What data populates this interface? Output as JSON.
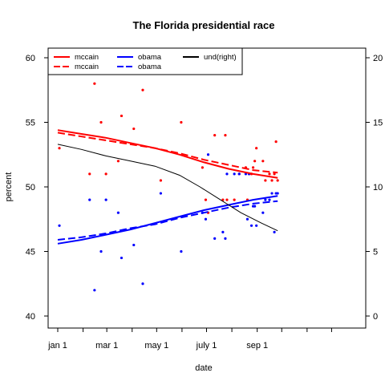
{
  "chart_data": {
    "type": "scatter",
    "title": "The Florida presidential race",
    "xlabel": "date",
    "ylabel": "percent",
    "ylim_left": [
      40,
      60
    ],
    "ylim_right": [
      0,
      20
    ],
    "xlim_days": [
      1,
      366
    ],
    "left_ticks": [
      40,
      45,
      50,
      55,
      60
    ],
    "right_ticks": [
      0,
      5,
      10,
      15,
      20
    ],
    "date_ticks": [
      {
        "day": 1,
        "label": "jan 1"
      },
      {
        "day": 61,
        "label": "mar 1"
      },
      {
        "day": 122,
        "label": "may 1"
      },
      {
        "day": 183,
        "label": "july 1"
      },
      {
        "day": 245,
        "label": "sep 1"
      }
    ],
    "minor_date_ticks": [
      32,
      92,
      153,
      214,
      275,
      306,
      336
    ],
    "legend": {
      "placement": "top-left",
      "entries": [
        {
          "label": "mccain",
          "color": "#ff0000",
          "style": "solid"
        },
        {
          "label": "mccain",
          "color": "#ff0000",
          "style": "dashed"
        },
        {
          "label": "obama",
          "color": "#0000ff",
          "style": "solid"
        },
        {
          "label": "obama",
          "color": "#0000ff",
          "style": "dashed"
        },
        {
          "label": "und(right)",
          "color": "#000000",
          "style": "solid"
        }
      ]
    },
    "series": [
      {
        "name": "mccain",
        "color": "#ff0000",
        "kind": "points",
        "points": [
          [
            3,
            53
          ],
          [
            40,
            51
          ],
          [
            46,
            58
          ],
          [
            54,
            55
          ],
          [
            60,
            51
          ],
          [
            75,
            52
          ],
          [
            79,
            55.5
          ],
          [
            94,
            54.5
          ],
          [
            105,
            57.5
          ],
          [
            127,
            50.5
          ],
          [
            152,
            55
          ],
          [
            178,
            51.5
          ],
          [
            182,
            49
          ],
          [
            185,
            48
          ],
          [
            193,
            54
          ],
          [
            203,
            49
          ],
          [
            206,
            54
          ],
          [
            208,
            49
          ],
          [
            217,
            49
          ],
          [
            223,
            51
          ],
          [
            231,
            51.5
          ],
          [
            233,
            49
          ],
          [
            235,
            51
          ],
          [
            238,
            51
          ],
          [
            240,
            51.5
          ],
          [
            242,
            52
          ],
          [
            244,
            53
          ],
          [
            252,
            52
          ],
          [
            255,
            50.5
          ],
          [
            260,
            51
          ],
          [
            263,
            50.5
          ],
          [
            266,
            51
          ],
          [
            268,
            53.5
          ],
          [
            270,
            50.5
          ]
        ]
      },
      {
        "name": "obama",
        "color": "#0000ff",
        "kind": "points",
        "points": [
          [
            3,
            47
          ],
          [
            40,
            49
          ],
          [
            46,
            42
          ],
          [
            54,
            45
          ],
          [
            60,
            49
          ],
          [
            75,
            48
          ],
          [
            79,
            44.5
          ],
          [
            94,
            45.5
          ],
          [
            105,
            42.5
          ],
          [
            127,
            49.5
          ],
          [
            152,
            45
          ],
          [
            178,
            48
          ],
          [
            182,
            47.5
          ],
          [
            185,
            52.5
          ],
          [
            193,
            46
          ],
          [
            203,
            46.5
          ],
          [
            206,
            46
          ],
          [
            208,
            51
          ],
          [
            217,
            51
          ],
          [
            223,
            51
          ],
          [
            231,
            51
          ],
          [
            233,
            47.5
          ],
          [
            235,
            51
          ],
          [
            238,
            47
          ],
          [
            240,
            48.5
          ],
          [
            242,
            48.5
          ],
          [
            244,
            47
          ],
          [
            252,
            48
          ],
          [
            255,
            49
          ],
          [
            260,
            49
          ],
          [
            263,
            49.5
          ],
          [
            266,
            46.5
          ],
          [
            268,
            49.5
          ],
          [
            270,
            49.5
          ]
        ]
      },
      {
        "name": "mccain",
        "color": "#ff0000",
        "kind": "line",
        "style": "solid",
        "points": [
          [
            1,
            54.4
          ],
          [
            30,
            54.1
          ],
          [
            60,
            53.8
          ],
          [
            90,
            53.4
          ],
          [
            120,
            53.0
          ],
          [
            150,
            52.5
          ],
          [
            180,
            51.9
          ],
          [
            210,
            51.4
          ],
          [
            240,
            51.0
          ],
          [
            270,
            50.7
          ]
        ]
      },
      {
        "name": "mccain",
        "color": "#ff0000",
        "kind": "line",
        "style": "dashed",
        "points": [
          [
            1,
            54.2
          ],
          [
            30,
            53.9
          ],
          [
            60,
            53.6
          ],
          [
            90,
            53.3
          ],
          [
            120,
            53.0
          ],
          [
            150,
            52.6
          ],
          [
            180,
            52.1
          ],
          [
            210,
            51.7
          ],
          [
            240,
            51.3
          ],
          [
            270,
            51.1
          ]
        ]
      },
      {
        "name": "obama",
        "color": "#0000ff",
        "kind": "line",
        "style": "solid",
        "points": [
          [
            1,
            45.6
          ],
          [
            30,
            45.9
          ],
          [
            60,
            46.3
          ],
          [
            90,
            46.7
          ],
          [
            120,
            47.2
          ],
          [
            150,
            47.7
          ],
          [
            180,
            48.2
          ],
          [
            210,
            48.6
          ],
          [
            240,
            49.0
          ],
          [
            270,
            49.3
          ]
        ]
      },
      {
        "name": "obama",
        "color": "#0000ff",
        "kind": "line",
        "style": "dashed",
        "points": [
          [
            1,
            45.9
          ],
          [
            30,
            46.1
          ],
          [
            60,
            46.4
          ],
          [
            90,
            46.8
          ],
          [
            120,
            47.1
          ],
          [
            150,
            47.6
          ],
          [
            180,
            48.0
          ],
          [
            210,
            48.4
          ],
          [
            240,
            48.7
          ],
          [
            270,
            48.9
          ]
        ]
      },
      {
        "name": "und(right)",
        "color": "#000000",
        "kind": "line",
        "style": "solid",
        "axis": "right",
        "points": [
          [
            1,
            13.3
          ],
          [
            30,
            12.9
          ],
          [
            60,
            12.4
          ],
          [
            90,
            12.0
          ],
          [
            120,
            11.6
          ],
          [
            150,
            10.9
          ],
          [
            175,
            10.0
          ],
          [
            200,
            9.0
          ],
          [
            225,
            8.0
          ],
          [
            250,
            7.2
          ],
          [
            270,
            6.6
          ]
        ]
      }
    ]
  }
}
